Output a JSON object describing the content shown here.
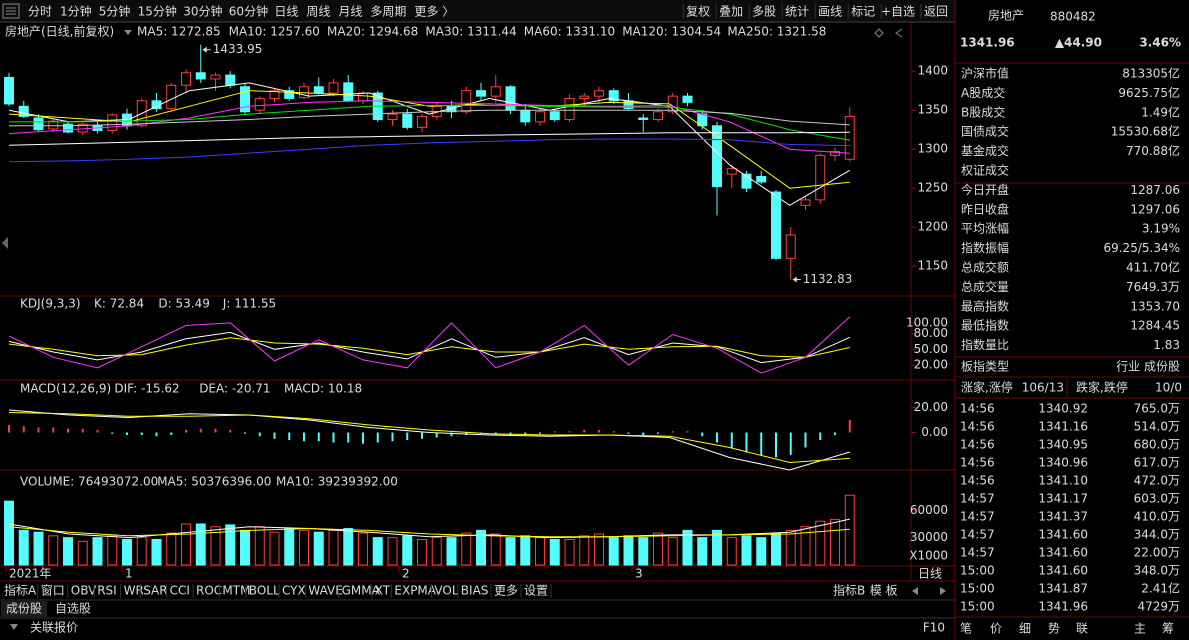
{
  "toolbar": {
    "periods": [
      "分时",
      "1分钟",
      "5分钟",
      "15分钟",
      "30分钟",
      "60分钟",
      "日线",
      "周线",
      "月线",
      "多周期",
      "更多 〉"
    ],
    "active_period": 6,
    "tools": [
      "复权",
      "叠加",
      "多股",
      "统计",
      "画线",
      "标记",
      "+自选",
      "返回"
    ]
  },
  "price_pane": {
    "type": "candlestick",
    "title": "房地产(日线,前复权)",
    "up_color": "#ff3c3c",
    "down_color": "#54fcfc",
    "ylim": [
      1113,
      1440
    ],
    "yticks": [
      1400,
      1350,
      1300,
      1250,
      1200,
      1150
    ],
    "candles": [
      [
        1392,
        1398,
        1355,
        1358
      ],
      [
        1355,
        1362,
        1340,
        1342
      ],
      [
        1340,
        1345,
        1322,
        1325
      ],
      [
        1326,
        1338,
        1322,
        1336
      ],
      [
        1332,
        1336,
        1320,
        1322
      ],
      [
        1322,
        1334,
        1318,
        1332
      ],
      [
        1330,
        1338,
        1320,
        1324
      ],
      [
        1324,
        1346,
        1320,
        1344
      ],
      [
        1345,
        1352,
        1325,
        1330
      ],
      [
        1330,
        1365,
        1328,
        1362
      ],
      [
        1362,
        1372,
        1348,
        1352
      ],
      [
        1352,
        1385,
        1350,
        1382
      ],
      [
        1382,
        1402,
        1372,
        1398
      ],
      [
        1398,
        1433.95,
        1385,
        1390
      ],
      [
        1390,
        1398,
        1375,
        1395
      ],
      [
        1395,
        1400,
        1378,
        1382
      ],
      [
        1380,
        1385,
        1345,
        1348
      ],
      [
        1350,
        1368,
        1345,
        1365
      ],
      [
        1365,
        1378,
        1360,
        1375
      ],
      [
        1375,
        1380,
        1362,
        1365
      ],
      [
        1366,
        1385,
        1364,
        1380
      ],
      [
        1380,
        1392,
        1370,
        1372
      ],
      [
        1372,
        1390,
        1368,
        1385
      ],
      [
        1385,
        1395,
        1360,
        1362
      ],
      [
        1362,
        1375,
        1358,
        1372
      ],
      [
        1372,
        1375,
        1335,
        1338
      ],
      [
        1338,
        1350,
        1330,
        1345
      ],
      [
        1345,
        1352,
        1325,
        1328
      ],
      [
        1328,
        1345,
        1322,
        1342
      ],
      [
        1342,
        1360,
        1338,
        1355
      ],
      [
        1355,
        1362,
        1340,
        1348
      ],
      [
        1348,
        1380,
        1345,
        1375
      ],
      [
        1375,
        1385,
        1362,
        1368
      ],
      [
        1368,
        1395,
        1360,
        1380
      ],
      [
        1380,
        1382,
        1345,
        1350
      ],
      [
        1350,
        1358,
        1330,
        1335
      ],
      [
        1335,
        1352,
        1330,
        1348
      ],
      [
        1348,
        1352,
        1335,
        1338
      ],
      [
        1338,
        1370,
        1335,
        1365
      ],
      [
        1365,
        1372,
        1355,
        1368
      ],
      [
        1368,
        1380,
        1360,
        1375
      ],
      [
        1375,
        1378,
        1358,
        1362
      ],
      [
        1362,
        1372,
        1350,
        1352
      ],
      [
        1340,
        1345,
        1322,
        1338
      ],
      [
        1338,
        1352,
        1335,
        1348
      ],
      [
        1348,
        1372,
        1345,
        1368
      ],
      [
        1368,
        1372,
        1355,
        1360
      ],
      [
        1345,
        1350,
        1325,
        1330
      ],
      [
        1330,
        1335,
        1215,
        1252
      ],
      [
        1268,
        1280,
        1250,
        1275
      ],
      [
        1268,
        1272,
        1245,
        1250
      ],
      [
        1265,
        1272,
        1255,
        1258
      ],
      [
        1245,
        1248,
        1158,
        1160
      ],
      [
        1160,
        1200,
        1132.83,
        1190
      ],
      [
        1228,
        1240,
        1222,
        1235
      ],
      [
        1235,
        1295,
        1230,
        1292
      ],
      [
        1292,
        1302,
        1285,
        1297.06
      ],
      [
        1287.06,
        1353.7,
        1284.45,
        1341.96
      ]
    ],
    "legend": [
      {
        "name": "MA5: 1272.85",
        "color": "#ffffff",
        "values": [
          1350,
          1335,
          1338,
          1375,
          1385,
          1368,
          1372,
          1345,
          1365,
          1350,
          1365,
          1355,
          1280,
          1228,
          1272.85
        ]
      },
      {
        "name": "MA10: 1257.60",
        "color": "#ffff00",
        "values": [
          1345,
          1340,
          1335,
          1355,
          1375,
          1372,
          1368,
          1355,
          1358,
          1355,
          1360,
          1358,
          1305,
          1250,
          1257.6
        ]
      },
      {
        "name": "MA20: 1294.68",
        "color": "#ff33ff",
        "values": [
          1320,
          1325,
          1330,
          1340,
          1355,
          1360,
          1362,
          1360,
          1358,
          1356,
          1355,
          1356,
          1335,
          1300,
          1294.68
        ]
      },
      {
        "name": "MA30: 1311.44",
        "color": "#00e600",
        "values": [
          1335,
          1335,
          1336,
          1338,
          1345,
          1350,
          1355,
          1356,
          1356,
          1355,
          1354,
          1354,
          1345,
          1325,
          1311.44
        ]
      },
      {
        "name": "MA60: 1331.10",
        "color": "#c8c8c8",
        "values": [
          1330,
          1330,
          1332,
          1335,
          1338,
          1342,
          1345,
          1348,
          1350,
          1350,
          1350,
          1350,
          1346,
          1336,
          1331.1
        ]
      },
      {
        "name": "MA120: 1304.54",
        "color": "#3c3cff",
        "values": [
          1284,
          1285,
          1287,
          1290,
          1295,
          1300,
          1305,
          1308,
          1310,
          1312,
          1313,
          1313,
          1312,
          1306,
          1304.54
        ]
      },
      {
        "name": "MA250: 1321.58",
        "color": "#ffffff",
        "values": [
          1305,
          1307,
          1309,
          1311,
          1313,
          1315,
          1316,
          1317,
          1318,
          1319,
          1320,
          1321,
          1321,
          1321,
          1321.58
        ]
      }
    ]
  },
  "kdj_pane": {
    "title": "KDJ(9,3,3)",
    "ylim": [
      -8,
      149
    ],
    "yticks": [
      {
        "value": 100,
        "label": "100.00"
      },
      {
        "value": 80,
        "label": "80.00"
      },
      {
        "value": 50,
        "label": "50.00"
      },
      {
        "value": 20,
        "label": "20.00"
      }
    ],
    "series": [
      {
        "name": "K: 72.84",
        "color": "#ffffff",
        "values": [
          65,
          45,
          30,
          45,
          70,
          82,
          50,
          62,
          45,
          32,
          70,
          35,
          45,
          72,
          40,
          62,
          55,
          25,
          35,
          72.84
        ]
      },
      {
        "name": "D: 53.49",
        "color": "#ffff00",
        "values": [
          60,
          50,
          38,
          40,
          58,
          72,
          62,
          60,
          52,
          40,
          55,
          45,
          45,
          60,
          50,
          55,
          56,
          38,
          35,
          53.49
        ]
      },
      {
        "name": "J: 111.55",
        "color": "#ff33ff",
        "values": [
          75,
          35,
          15,
          55,
          95,
          100,
          28,
          68,
          30,
          15,
          100,
          15,
          45,
          95,
          20,
          78,
          52,
          5,
          35,
          111.55
        ]
      }
    ]
  },
  "macd_pane": {
    "title": "MACD(12,26,9)",
    "ylim": [
      -30,
      42
    ],
    "yticks": [
      {
        "value": 20,
        "label": "20.00"
      },
      {
        "value": 0,
        "label": "0.00"
      }
    ],
    "series": [
      {
        "name": "DIF: -15.62",
        "color": "#ffffff",
        "values": [
          18,
          14,
          12,
          15,
          14,
          10,
          4,
          0,
          -2,
          -3,
          -2,
          -4,
          -20,
          -30,
          -15.62
        ]
      },
      {
        "name": "DEA: -20.71",
        "color": "#ffff00",
        "values": [
          16,
          15,
          13,
          13,
          14,
          11,
          6,
          2,
          -1,
          -2,
          -2,
          -3,
          -12,
          -24,
          -20.71
        ]
      }
    ],
    "bars": {
      "name": "MACD: 10.18",
      "color": "#ff33ff",
      "values": [
        6,
        5,
        4,
        4,
        3,
        3,
        2,
        -1,
        -2,
        -2,
        -3,
        -2,
        2,
        3,
        3,
        2,
        -1,
        -3,
        -5,
        -6,
        -7,
        -7,
        -8,
        -8,
        -9,
        -8,
        -7,
        -6,
        -5,
        -4,
        -3,
        -2,
        -1,
        -1,
        -2,
        -2,
        -1,
        1,
        1,
        2,
        2,
        1,
        -1,
        -2,
        -1,
        1,
        1,
        -3,
        -8,
        -12,
        -16,
        -18,
        -20,
        -18,
        -12,
        -6,
        -2,
        10.18
      ]
    }
  },
  "volume_pane": {
    "title": "VOLUME: 76493072.00",
    "unit": "X1000",
    "ylim": [
      0,
      102000
    ],
    "yticks": [
      60000,
      30000
    ],
    "values": [
      70000,
      38000,
      36000,
      32000,
      30000,
      26000,
      30000,
      32000,
      28000,
      30000,
      28000,
      35000,
      45000,
      45000,
      42000,
      44000,
      38000,
      42000,
      36000,
      40000,
      38000,
      36000,
      38000,
      40000,
      35000,
      30000,
      30000,
      32000,
      28000,
      30000,
      30000,
      35000,
      38000,
      34000,
      30000,
      32000,
      30000,
      28000,
      28000,
      32000,
      34000,
      30000,
      32000,
      30000,
      35000,
      30000,
      38000,
      30000,
      38000,
      30000,
      32000,
      30000,
      35000,
      38000,
      42000,
      48000,
      50000,
      76493.072
    ],
    "series": [
      {
        "name": "MA5: 50376396.00",
        "color": "#ffffff",
        "values": [
          45000,
          34000,
          30000,
          36000,
          42000,
          40000,
          36000,
          31000,
          33000,
          30000,
          31000,
          33000,
          33000,
          36000,
          50376.396
        ]
      },
      {
        "name": "MA10: 39239392.00",
        "color": "#ffff00",
        "values": [
          42000,
          36000,
          32000,
          34000,
          38000,
          40000,
          38000,
          34000,
          32000,
          31000,
          31000,
          32000,
          33000,
          34000,
          39239.392
        ]
      }
    ]
  },
  "date_axis": [
    "2021年",
    "1",
    "2",
    "3"
  ],
  "period_label": "日线",
  "indicator_tabs": [
    "指标A",
    "窗口",
    "OBV",
    "RSI",
    "WR",
    "SAR",
    "CCI",
    "ROC",
    "MTM",
    "BOLL",
    "CYX",
    "WAVE",
    "GMMA",
    "XT",
    "EXPMA",
    "VOL",
    "BIAS",
    "更多",
    "设置"
  ],
  "active_indicator": 15,
  "indicator_tabs_right": [
    "指标B",
    "模 板"
  ],
  "stock_tabs": [
    "成份股",
    "自选股"
  ],
  "status": {
    "left": "关联报价",
    "right": "F10"
  },
  "quote": {
    "name": "房地产",
    "code": "880482",
    "price": "1341.96",
    "change": "▲44.90",
    "pct": "3.46%"
  },
  "stats": [
    {
      "label": "沪深市值",
      "value": "813305亿",
      "color": "#ffffff"
    },
    {
      "label": "A股成交",
      "value": "9625.75亿",
      "color": "#ffff00"
    },
    {
      "label": "B股成交",
      "value": "1.49亿",
      "color": "#ffff00"
    },
    {
      "label": "国债成交",
      "value": "15530.68亿",
      "color": "#ffff00"
    },
    {
      "label": "基金成交",
      "value": "770.88亿",
      "color": "#ffff00"
    },
    {
      "label": "权证成交"
    },
    {
      "label": "今日开盘",
      "value": "1287.06",
      "color": "#00e600"
    },
    {
      "label": "昨日收盘",
      "value": "1297.06",
      "color": "#ffffff"
    },
    {
      "label": "平均涨幅",
      "value": "3.19%",
      "color": "#ff3c3c"
    },
    {
      "label": "指数振幅",
      "value": "69.25/5.34%",
      "color": "#ffffff"
    },
    {
      "label": "总成交额",
      "value": "411.70亿",
      "color": "#ffff00"
    },
    {
      "label": "总成交量",
      "value": "7649.3万",
      "color": "#ffff00"
    },
    {
      "label": "最高指数",
      "value": "1353.70",
      "color": "#ff3c3c"
    },
    {
      "label": "最低指数",
      "value": "1284.45",
      "color": "#00e600"
    },
    {
      "label": "指数量比",
      "value": "1.83",
      "color": "#ff3c3c"
    }
  ],
  "sector": {
    "label": "板指类型",
    "value": "行业 成份股"
  },
  "breadth": {
    "up_label": "涨家,涨停",
    "up_value": "106/13",
    "down_label": "跌家,跌停",
    "down_value": "10/0"
  },
  "trades": [
    [
      "14:56",
      "1340.92",
      "765.0万"
    ],
    [
      "14:56",
      "1341.16",
      "514.0万"
    ],
    [
      "14:56",
      "1340.95",
      "680.0万"
    ],
    [
      "14:56",
      "1340.96",
      "617.0万"
    ],
    [
      "14:56",
      "1341.10",
      "472.0万"
    ],
    [
      "14:57",
      "1341.17",
      "603.0万"
    ],
    [
      "14:57",
      "1341.37",
      "410.0万"
    ],
    [
      "14:57",
      "1341.60",
      "344.0万"
    ],
    [
      "14:57",
      "1341.60",
      "22.00万"
    ],
    [
      "15:00",
      "1341.60",
      "348.0万"
    ],
    [
      "15:00",
      "1341.87",
      "2.41亿"
    ],
    [
      "15:00",
      "1341.96",
      "4729万"
    ]
  ],
  "panel_tabs": [
    "笔",
    "价",
    "细",
    "势",
    "联",
    "主",
    "筹"
  ]
}
